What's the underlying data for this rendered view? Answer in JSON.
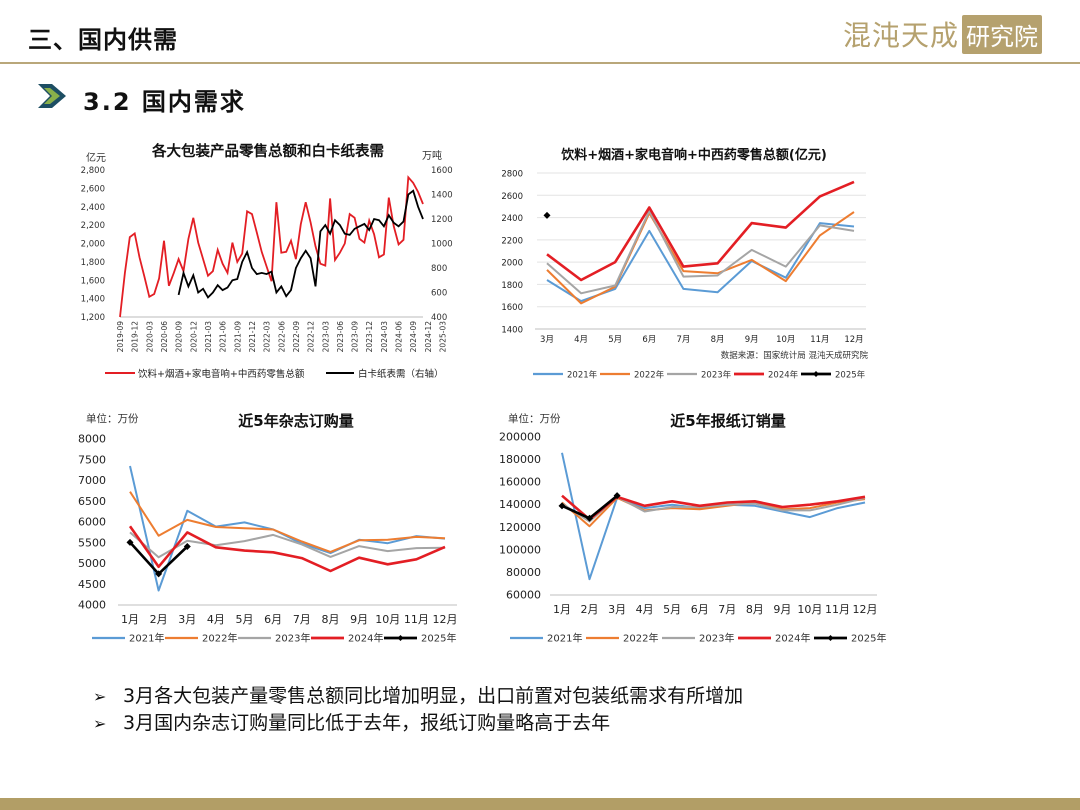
{
  "header": {
    "title": "三、国内供需",
    "logo_text": "混沌天成",
    "logo_box": "研究院"
  },
  "section": {
    "title": "3.2 国内需求"
  },
  "colors": {
    "gold": "#b29e66",
    "red": "#e31e24",
    "black": "#000000",
    "blue": "#5b9bd5",
    "orange": "#ed7d31",
    "gray": "#a5a5a5"
  },
  "charts": {
    "c1": {
      "title": "各大包装产品零售总额和白卡纸表需",
      "left_unit": "亿元",
      "right_unit": "万吨",
      "left_ticks": [
        "1,200",
        "1,400",
        "1,600",
        "1,800",
        "2,000",
        "2,200",
        "2,400",
        "2,600",
        "2,800"
      ],
      "right_ticks": [
        "400",
        "600",
        "800",
        "1000",
        "1200",
        "1400",
        "1600"
      ],
      "x_ticks": [
        "2019-09",
        "2019-12",
        "2020-03",
        "2020-06",
        "2020-09",
        "2020-12",
        "2021-03",
        "2021-06",
        "2021-09",
        "2021-12",
        "2022-03",
        "2022-06",
        "2022-09",
        "2022-12",
        "2023-03",
        "2023-06",
        "2023-09",
        "2023-12",
        "2024-03",
        "2024-06",
        "2024-09",
        "2024-12",
        "2025-03"
      ],
      "legend": [
        "饮料+烟酒+家电音响+中西药零售总额",
        "白卡纸表需（右轴）"
      ]
    },
    "c2": {
      "title": "饮料+烟酒+家电音响+中西药零售总额(亿元)",
      "y_ticks": [
        "1400",
        "1600",
        "1800",
        "2000",
        "2200",
        "2400",
        "2600",
        "2800"
      ],
      "x_ticks": [
        "3月",
        "4月",
        "5月",
        "6月",
        "7月",
        "8月",
        "9月",
        "10月",
        "11月",
        "12月"
      ],
      "source": "数据来源：国家统计局  混沌天成研究院",
      "legend": [
        "2021年",
        "2022年",
        "2023年",
        "2024年",
        "2025年"
      ]
    },
    "c3": {
      "title": "近5年杂志订购量",
      "unit": "单位：万份",
      "y_ticks": [
        "4000",
        "4500",
        "5000",
        "5500",
        "6000",
        "6500",
        "7000",
        "7500",
        "8000"
      ],
      "x_ticks": [
        "1月",
        "2月",
        "3月",
        "4月",
        "5月",
        "6月",
        "7月",
        "8月",
        "9月",
        "10月",
        "11月",
        "12月"
      ],
      "legend": [
        "2021年",
        "2022年",
        "2023年",
        "2024年",
        "2025年"
      ]
    },
    "c4": {
      "title": "近5年报纸订销量",
      "unit": "单位：万份",
      "y_ticks": [
        "60000",
        "80000",
        "100000",
        "120000",
        "140000",
        "160000",
        "180000",
        "200000"
      ],
      "x_ticks": [
        "1月",
        "2月",
        "3月",
        "4月",
        "5月",
        "6月",
        "7月",
        "8月",
        "9月",
        "10月",
        "11月",
        "12月"
      ],
      "legend": [
        "2021年",
        "2022年",
        "2023年",
        "2024年",
        "2025年"
      ]
    }
  },
  "chart_data": [
    {
      "type": "line",
      "title": "各大包装产品零售总额和白卡纸表需",
      "ylabel": "亿元",
      "y2label": "万吨",
      "ylim": [
        1200,
        2800
      ],
      "y2lim": [
        400,
        1600
      ],
      "x_start": "2019-09",
      "series": [
        {
          "name": "饮料+烟酒+家电音响+中西药零售总额",
          "axis": "left",
          "values": [
            1200,
            1680,
            2070,
            2110,
            1850,
            1640,
            1420,
            1450,
            1620,
            2030,
            1540,
            1680,
            1830,
            1700,
            2050,
            2280,
            2010,
            1830,
            1650,
            1700,
            1930,
            1780,
            1680,
            2010,
            1800,
            1890,
            2350,
            2320,
            2120,
            1910,
            1750,
            1590,
            2450,
            1900,
            1910,
            2030,
            1830,
            2210,
            2450,
            2230,
            1970,
            1780,
            1760,
            2490,
            1820,
            1900,
            2000,
            2320,
            2280,
            2050,
            2010,
            2250,
            2100,
            1850,
            1880,
            2500,
            2190,
            1990,
            2040,
            2720,
            2660,
            2560,
            2430
          ]
        },
        {
          "name": "白卡纸表需（右轴）",
          "axis": "right",
          "values": [
            null,
            null,
            null,
            null,
            null,
            null,
            null,
            null,
            null,
            null,
            null,
            null,
            580,
            760,
            650,
            740,
            600,
            630,
            560,
            600,
            660,
            620,
            640,
            700,
            710,
            850,
            930,
            800,
            750,
            760,
            750,
            770,
            600,
            650,
            570,
            620,
            800,
            880,
            940,
            880,
            650,
            1100,
            1150,
            1080,
            1190,
            1150,
            1080,
            1070,
            1120,
            1140,
            1160,
            1110,
            1200,
            1190,
            1140,
            1230,
            1170,
            1140,
            1180,
            1400,
            1430,
            1300,
            1200
          ]
        }
      ]
    },
    {
      "type": "line",
      "title": "饮料+烟酒+家电音响+中西药零售总额(亿元)",
      "categories": [
        "3月",
        "4月",
        "5月",
        "6月",
        "7月",
        "8月",
        "9月",
        "10月",
        "11月",
        "12月"
      ],
      "ylim": [
        1400,
        2800
      ],
      "series": [
        {
          "name": "2021年",
          "values": [
            1840,
            1650,
            1760,
            2280,
            1760,
            1730,
            2010,
            1860,
            2350,
            2320
          ]
        },
        {
          "name": "2022年",
          "values": [
            1930,
            1630,
            1780,
            2440,
            1920,
            1900,
            2020,
            1830,
            2240,
            2450
          ]
        },
        {
          "name": "2023年",
          "values": [
            1990,
            1720,
            1790,
            2460,
            1870,
            1880,
            2110,
            1960,
            2330,
            2280
          ]
        },
        {
          "name": "2024年",
          "values": [
            2070,
            1840,
            2000,
            2490,
            1960,
            1990,
            2350,
            2310,
            2590,
            2720
          ]
        },
        {
          "name": "2025年",
          "values": [
            2420,
            null,
            null,
            null,
            null,
            null,
            null,
            null,
            null,
            null
          ]
        }
      ]
    },
    {
      "type": "line",
      "title": "近5年杂志订购量",
      "categories": [
        "1月",
        "2月",
        "3月",
        "4月",
        "5月",
        "6月",
        "7月",
        "8月",
        "9月",
        "10月",
        "11月",
        "12月"
      ],
      "ylim": [
        4000,
        8000
      ],
      "series": [
        {
          "name": "2021年",
          "values": [
            7350,
            4350,
            6270,
            5890,
            5990,
            5820,
            5480,
            5250,
            5570,
            5490,
            5660,
            5600
          ]
        },
        {
          "name": "2022年",
          "values": [
            6730,
            5670,
            6050,
            5880,
            5850,
            5820,
            5530,
            5280,
            5560,
            5570,
            5640,
            5610
          ]
        },
        {
          "name": "2023年",
          "values": [
            5750,
            5150,
            5550,
            5440,
            5540,
            5690,
            5460,
            5160,
            5420,
            5300,
            5370,
            5380
          ]
        },
        {
          "name": "2024年",
          "values": [
            5900,
            4920,
            5750,
            5390,
            5310,
            5270,
            5130,
            4820,
            5140,
            4980,
            5100,
            5400
          ]
        },
        {
          "name": "2025年",
          "values": [
            5510,
            4750,
            5410,
            null,
            null,
            null,
            null,
            null,
            null,
            null,
            null,
            null
          ]
        }
      ]
    },
    {
      "type": "line",
      "title": "近5年报纸订销量",
      "categories": [
        "1月",
        "2月",
        "3月",
        "4月",
        "5月",
        "6月",
        "7月",
        "8月",
        "9月",
        "10月",
        "11月",
        "12月"
      ],
      "ylim": [
        60000,
        200000
      ],
      "series": [
        {
          "name": "2021年",
          "values": [
            186000,
            74000,
            146000,
            137000,
            140000,
            137000,
            140000,
            139000,
            134000,
            129000,
            137000,
            142000
          ]
        },
        {
          "name": "2022年",
          "values": [
            142000,
            121000,
            146000,
            135000,
            137000,
            136000,
            139000,
            142000,
            136000,
            137000,
            142000,
            145000
          ]
        },
        {
          "name": "2023年",
          "values": [
            141000,
            125000,
            147000,
            134000,
            138000,
            138000,
            140000,
            141000,
            135000,
            135000,
            140000,
            146000
          ]
        },
        {
          "name": "2024年",
          "values": [
            148000,
            127000,
            147000,
            139000,
            143000,
            139000,
            142000,
            143000,
            138000,
            140000,
            143000,
            147000
          ]
        },
        {
          "name": "2025年",
          "values": [
            139000,
            128000,
            148000,
            null,
            null,
            null,
            null,
            null,
            null,
            null,
            null,
            null
          ]
        }
      ]
    }
  ],
  "bullets": [
    "3月各大包装产量零售总额同比增加明显，出口前置对包装纸需求有所增加",
    "3月国内杂志订购量同比低于去年，报纸订购量略高于去年"
  ]
}
